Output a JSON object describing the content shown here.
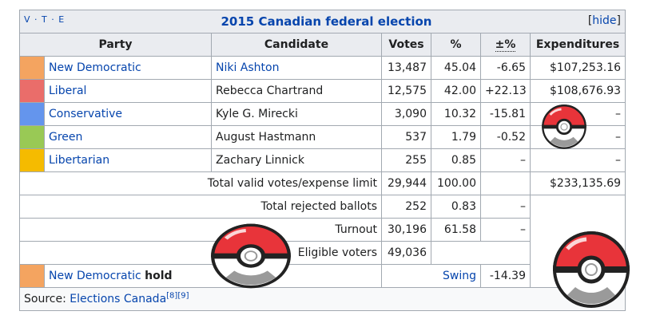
{
  "header": {
    "vte": "V · T · E",
    "title": "2015 Canadian federal election",
    "hide_label": "hide"
  },
  "columns": [
    "Party",
    "Candidate",
    "Votes",
    "%",
    "±%",
    "Expenditures"
  ],
  "rows": [
    {
      "color": "#F4A460",
      "party": "New Democratic",
      "candidate": "Niki Ashton",
      "candidate_link": true,
      "votes": "13,487",
      "pct": "45.04",
      "change": "-6.65",
      "expenditures": "$107,253.16"
    },
    {
      "color": "#EA6D6A",
      "party": "Liberal",
      "candidate": "Rebecca Chartrand",
      "candidate_link": false,
      "votes": "12,575",
      "pct": "42.00",
      "change": "+22.13",
      "expenditures": "$108,676.93"
    },
    {
      "color": "#6495ED",
      "party": "Conservative",
      "candidate": "Kyle G. Mirecki",
      "candidate_link": false,
      "votes": "3,090",
      "pct": "10.32",
      "change": "-15.81",
      "expenditures": "–"
    },
    {
      "color": "#99C955",
      "party": "Green",
      "candidate": "August Hastmann",
      "candidate_link": false,
      "votes": "537",
      "pct": "1.79",
      "change": "-0.52",
      "expenditures": "–"
    },
    {
      "color": "#F5BB00",
      "party": "Libertarian",
      "candidate": "Zachary Linnick",
      "candidate_link": false,
      "votes": "255",
      "pct": "0.85",
      "change": "–",
      "expenditures": "–"
    }
  ],
  "totals": {
    "valid_label": "Total valid votes/expense limit",
    "valid_votes": "29,944",
    "valid_pct": "100.00",
    "valid_change": "",
    "valid_exp": "$233,135.69",
    "rejected_label": "Total rejected ballots",
    "rejected_votes": "252",
    "rejected_pct": "0.83",
    "rejected_change": "–",
    "turnout_label": "Turnout",
    "turnout_votes": "30,196",
    "turnout_pct": "61.58",
    "turnout_change": "–",
    "eligible_label": "Eligible voters",
    "eligible_votes": "49,036"
  },
  "hold": {
    "color": "#F4A460",
    "party": "New Democratic",
    "word": "hold",
    "swing_label": "Swing",
    "swing_value": "-14.39"
  },
  "source": {
    "prefix": "Source: ",
    "link": "Elections Canada",
    "refs": "[8][9]"
  },
  "colors": {
    "pokeball_red": "#E8343A",
    "pokeball_white": "#FFFFFF",
    "pokeball_dark": "#222222"
  }
}
